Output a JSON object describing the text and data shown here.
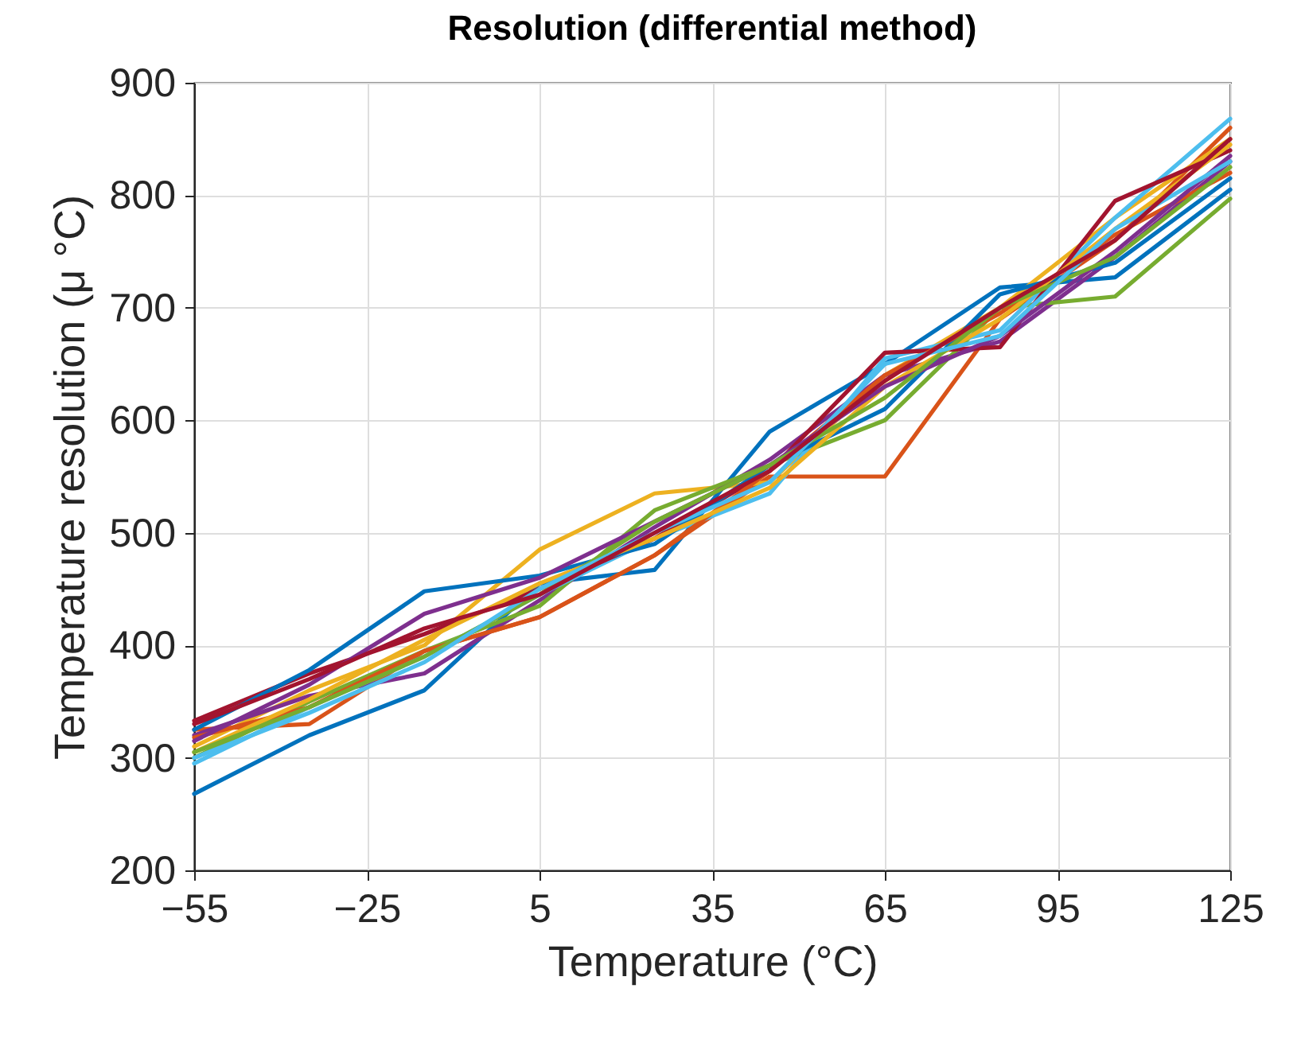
{
  "chart_data": {
    "type": "line",
    "title": "Resolution (differential method)",
    "xlabel": "Temperature (°C)",
    "ylabel": "Temperature resolution (μ °C)",
    "x": [
      -55,
      -35,
      -15,
      5,
      25,
      45,
      65,
      85,
      105,
      125
    ],
    "xlim": [
      -55,
      125
    ],
    "xticks": [
      -55,
      -25,
      5,
      35,
      65,
      95,
      125
    ],
    "ylim": [
      200,
      900
    ],
    "yticks": [
      200,
      300,
      400,
      500,
      600,
      700,
      800,
      900
    ],
    "grid": true,
    "line_style": "solid",
    "series": [
      {
        "color": "#0072bd",
        "values": [
          268,
          320,
          360,
          455,
          467,
          590,
          650,
          718,
          727,
          805
        ]
      },
      {
        "color": "#d95319",
        "values": [
          325,
          330,
          395,
          425,
          480,
          550,
          550,
          690,
          760,
          860
        ]
      },
      {
        "color": "#edb120",
        "values": [
          310,
          360,
          400,
          485,
          535,
          545,
          640,
          700,
          780,
          850
        ]
      },
      {
        "color": "#7e2f8e",
        "values": [
          320,
          355,
          375,
          440,
          505,
          565,
          640,
          670,
          745,
          830
        ]
      },
      {
        "color": "#77ac30",
        "values": [
          300,
          350,
          395,
          435,
          520,
          560,
          600,
          700,
          710,
          797
        ]
      },
      {
        "color": "#4dbeee",
        "values": [
          295,
          345,
          390,
          445,
          495,
          535,
          655,
          680,
          780,
          868
        ]
      },
      {
        "color": "#a2142f",
        "values": [
          333,
          375,
          410,
          450,
          495,
          555,
          660,
          665,
          795,
          840
        ]
      },
      {
        "color": "#0072bd",
        "values": [
          325,
          378,
          448,
          462,
          490,
          560,
          610,
          712,
          740,
          815
        ]
      },
      {
        "color": "#d95319",
        "values": [
          318,
          345,
          395,
          425,
          480,
          555,
          640,
          695,
          765,
          820
        ]
      },
      {
        "color": "#edb120",
        "values": [
          305,
          352,
          405,
          455,
          495,
          540,
          630,
          690,
          770,
          845
        ]
      },
      {
        "color": "#7e2f8e",
        "values": [
          315,
          365,
          428,
          460,
          510,
          560,
          630,
          675,
          750,
          835
        ]
      },
      {
        "color": "#77ac30",
        "values": [
          305,
          345,
          390,
          445,
          510,
          560,
          620,
          700,
          745,
          825
        ]
      },
      {
        "color": "#4dbeee",
        "values": [
          300,
          340,
          385,
          450,
          500,
          545,
          650,
          675,
          770,
          830
        ]
      },
      {
        "color": "#a2142f",
        "values": [
          330,
          370,
          415,
          445,
          500,
          555,
          635,
          700,
          760,
          850
        ]
      }
    ]
  }
}
